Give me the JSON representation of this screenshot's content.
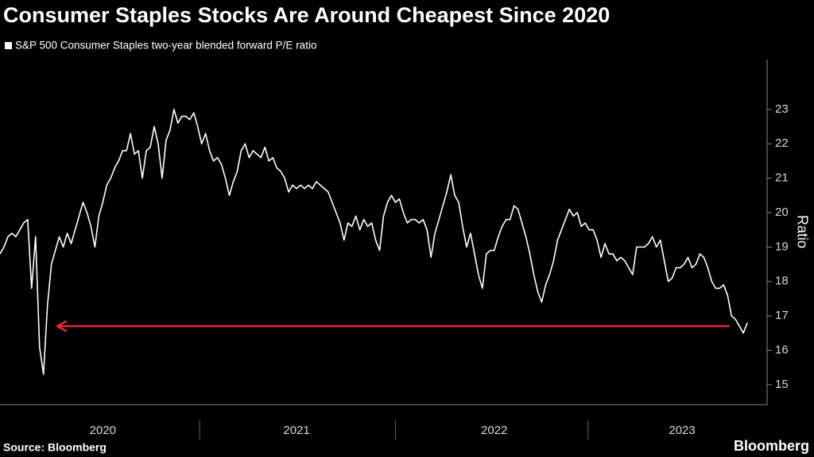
{
  "chart_data": {
    "type": "line",
    "title": "Consumer Staples Stocks Are Around Cheapest Since 2020",
    "y_label": "Ratio",
    "source": "Source: Bloomberg",
    "brand": "Bloomberg",
    "x": [
      2020,
      2020.02,
      2020.04,
      2020.06,
      2020.08,
      2020.1,
      2020.12,
      2020.14,
      2020.16,
      2020.18,
      2020.2,
      2020.22,
      2020.24,
      2020.26,
      2020.28,
      2020.3,
      2020.32,
      2020.34,
      2020.36,
      2020.38,
      2020.4,
      2020.42,
      2020.44,
      2020.46,
      2020.48,
      2020.5,
      2020.52,
      2020.54,
      2020.56,
      2020.58,
      2020.6,
      2020.62,
      2020.64,
      2020.66,
      2020.68,
      2020.7,
      2020.72,
      2020.74,
      2020.76,
      2020.78,
      2020.8,
      2020.82,
      2020.84,
      2020.86,
      2020.88,
      2020.9,
      2020.92,
      2020.94,
      2020.96,
      2020.98,
      2021,
      2021.02,
      2021.04,
      2021.06,
      2021.08,
      2021.1,
      2021.12,
      2021.14,
      2021.16,
      2021.18,
      2021.2,
      2021.22,
      2021.24,
      2021.26,
      2021.28,
      2021.3,
      2021.32,
      2021.34,
      2021.36,
      2021.38,
      2021.4,
      2021.42,
      2021.44,
      2021.46,
      2021.48,
      2021.5,
      2021.52,
      2021.54,
      2021.56,
      2021.58,
      2021.6,
      2021.62,
      2021.64,
      2021.66,
      2021.68,
      2021.7,
      2021.72,
      2021.74,
      2021.76,
      2021.78,
      2021.8,
      2021.82,
      2021.84,
      2021.86,
      2021.88,
      2021.9,
      2021.92,
      2021.94,
      2021.96,
      2021.98,
      2022,
      2022.02,
      2022.04,
      2022.06,
      2022.08,
      2022.1,
      2022.12,
      2022.14,
      2022.16,
      2022.18,
      2022.2,
      2022.22,
      2022.24,
      2022.26,
      2022.28,
      2022.3,
      2022.32,
      2022.34,
      2022.36,
      2022.38,
      2022.4,
      2022.42,
      2022.44,
      2022.46,
      2022.48,
      2022.5,
      2022.52,
      2022.54,
      2022.56,
      2022.58,
      2022.6,
      2022.62,
      2022.64,
      2022.66,
      2022.68,
      2022.7,
      2022.72,
      2022.74,
      2022.76,
      2022.78,
      2022.8,
      2022.82,
      2022.84,
      2022.86,
      2022.88,
      2022.9,
      2022.92,
      2022.94,
      2022.96,
      2022.98,
      2023,
      2023.02,
      2023.04,
      2023.06,
      2023.08,
      2023.1,
      2023.12,
      2023.14,
      2023.16,
      2023.18,
      2023.2,
      2023.22,
      2023.24,
      2023.26,
      2023.28,
      2023.3,
      2023.32,
      2023.34,
      2023.36,
      2023.38,
      2023.4,
      2023.42,
      2023.44,
      2023.46,
      2023.48,
      2023.5,
      2023.52,
      2023.54,
      2023.56,
      2023.58,
      2023.6,
      2023.62,
      2023.64,
      2023.66,
      2023.68,
      2023.7,
      2023.72,
      2023.74,
      2023.76,
      2023.78
    ],
    "series": [
      {
        "name": "S&P 500 Consumer Staples two-year blended forward P/E ratio",
        "color": "#ffffff",
        "values": [
          18.8,
          19.0,
          19.3,
          19.4,
          19.3,
          19.5,
          19.7,
          19.8,
          17.8,
          19.3,
          16.1,
          15.3,
          17.3,
          18.5,
          18.9,
          19.3,
          19.0,
          19.4,
          19.1,
          19.5,
          19.9,
          20.3,
          20.0,
          19.6,
          19.0,
          19.9,
          20.3,
          20.8,
          21.0,
          21.3,
          21.5,
          21.8,
          21.8,
          22.3,
          21.7,
          21.8,
          21.0,
          21.8,
          21.9,
          22.5,
          22.0,
          21.0,
          22.1,
          22.4,
          23.0,
          22.6,
          22.8,
          22.8,
          22.7,
          22.9,
          22.5,
          22.0,
          22.3,
          21.8,
          21.5,
          21.6,
          21.4,
          21.0,
          20.5,
          20.9,
          21.2,
          21.8,
          22.0,
          21.6,
          21.8,
          21.7,
          21.6,
          21.9,
          21.5,
          21.6,
          21.3,
          21.2,
          21.0,
          20.6,
          20.8,
          20.7,
          20.8,
          20.7,
          20.8,
          20.7,
          20.9,
          20.8,
          20.7,
          20.6,
          20.3,
          20.0,
          19.7,
          19.2,
          19.7,
          19.6,
          19.9,
          19.5,
          19.8,
          19.6,
          19.7,
          19.2,
          18.9,
          19.9,
          20.3,
          20.5,
          20.3,
          20.4,
          20.0,
          19.7,
          19.8,
          19.8,
          19.7,
          19.8,
          19.5,
          18.7,
          19.4,
          19.8,
          20.2,
          20.6,
          21.1,
          20.5,
          20.3,
          19.6,
          19.0,
          19.4,
          18.8,
          18.2,
          17.8,
          18.8,
          18.9,
          18.9,
          19.3,
          19.6,
          19.8,
          19.8,
          20.2,
          20.1,
          19.7,
          19.3,
          18.8,
          18.2,
          17.7,
          17.4,
          17.9,
          18.2,
          18.6,
          19.2,
          19.5,
          19.8,
          20.1,
          19.9,
          20.0,
          19.6,
          19.7,
          19.5,
          19.5,
          19.2,
          18.7,
          19.1,
          18.8,
          18.8,
          18.6,
          18.7,
          18.6,
          18.4,
          18.2,
          19.0,
          19.0,
          19.0,
          19.1,
          19.3,
          19.0,
          19.2,
          18.6,
          18.0,
          18.1,
          18.4,
          18.4,
          18.5,
          18.7,
          18.4,
          18.5,
          18.8,
          18.7,
          18.4,
          18.0,
          17.8,
          17.8,
          17.9,
          17.6,
          17.0,
          16.9,
          16.7,
          16.5,
          16.8
        ]
      }
    ],
    "xlim": [
      2020,
      2023.88
    ],
    "xticks": [
      {
        "value": 2020.52,
        "label": "2020"
      },
      {
        "value": 2021.5,
        "label": "2021"
      },
      {
        "value": 2022.5,
        "label": "2022"
      },
      {
        "value": 2023.45,
        "label": "2023"
      }
    ],
    "ylim": [
      14.42,
      24.45
    ],
    "yticks": [
      15,
      16,
      17,
      18,
      19,
      20,
      21,
      22,
      23
    ],
    "arrow": {
      "y": 16.7,
      "from": 2023.69,
      "to": 2020.29,
      "color": "#e8283a"
    }
  }
}
